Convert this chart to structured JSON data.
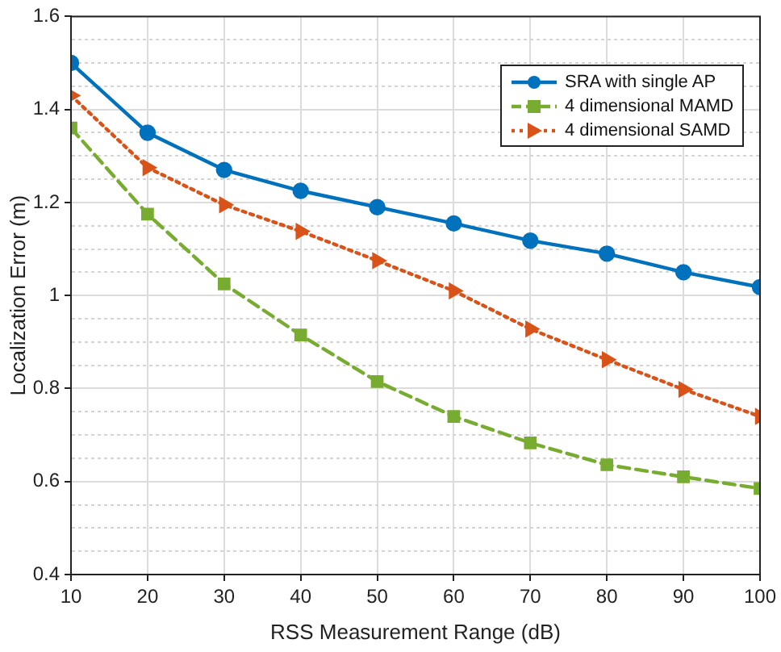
{
  "chart_data": {
    "type": "line",
    "xlabel": "RSS Measurement Range (dB)",
    "ylabel": "Localization Error (m)",
    "x": [
      10,
      20,
      30,
      40,
      50,
      60,
      70,
      80,
      90,
      100
    ],
    "xlim": [
      10,
      100
    ],
    "xticks": [
      10,
      20,
      30,
      40,
      50,
      60,
      70,
      80,
      90,
      100
    ],
    "ylim": [
      0.4,
      1.6
    ],
    "yticks": [
      0.4,
      {
        "value": 0.45,
        "label": null
      },
      {
        "value": 0.5,
        "label": null
      },
      {
        "value": 0.55,
        "label": null
      },
      0.6,
      {
        "value": 0.65,
        "label": null
      },
      {
        "value": 0.7,
        "label": null
      },
      {
        "value": 0.75,
        "label": null
      },
      0.8,
      {
        "value": 0.85,
        "label": null
      },
      {
        "value": 0.9,
        "label": null
      },
      {
        "value": 0.95,
        "label": null
      },
      1,
      {
        "value": 1.05,
        "label": null
      },
      {
        "value": 1.1,
        "label": null
      },
      {
        "value": 1.15,
        "label": null
      },
      1.2,
      {
        "value": 1.25,
        "label": null
      },
      {
        "value": 1.3,
        "label": null
      },
      {
        "value": 1.35,
        "label": null
      },
      1.4,
      {
        "value": 1.45,
        "label": null
      },
      {
        "value": 1.5,
        "label": null
      },
      {
        "value": 1.55,
        "label": null
      },
      1.6
    ],
    "grid": true,
    "legend": "top right",
    "series": [
      {
        "name": "SRA with single AP",
        "color": "#0072bd",
        "marker": "circle",
        "line_style": "solid",
        "values": [
          1.5,
          1.35,
          1.27,
          1.225,
          1.19,
          1.155,
          1.118,
          1.09,
          1.05,
          1.018
        ]
      },
      {
        "name": "4 dimensional MAMD",
        "color": "#77ac30",
        "marker": "square",
        "line_style": "dashed",
        "values": [
          1.36,
          1.175,
          1.025,
          0.915,
          0.815,
          0.74,
          0.683,
          0.636,
          0.61,
          0.585
        ]
      },
      {
        "name": "4 dimensional SAMD",
        "color": "#d95319",
        "marker": "triangle",
        "line_style": "dotted",
        "values": [
          1.43,
          1.275,
          1.195,
          1.138,
          1.075,
          1.01,
          0.928,
          0.862,
          0.798,
          0.74
        ]
      }
    ]
  }
}
